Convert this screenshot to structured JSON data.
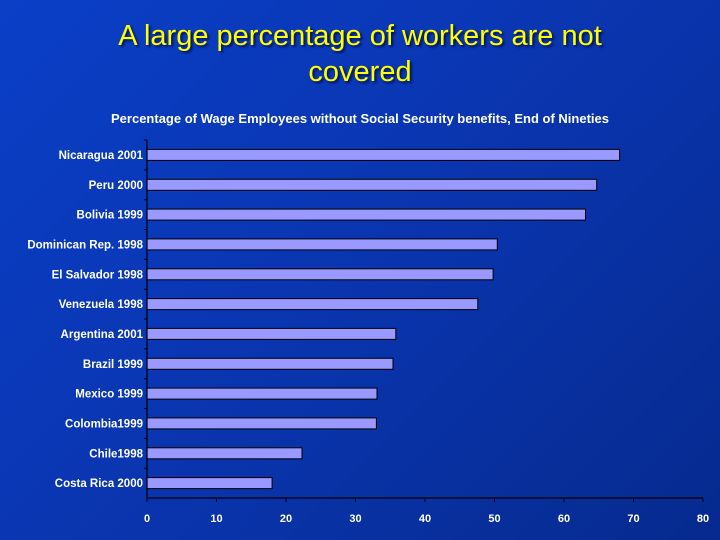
{
  "slide": {
    "title_line1": "A large percentage of workers are not",
    "title_line2": "covered"
  },
  "chart_data": {
    "type": "bar",
    "orientation": "horizontal",
    "title": "Percentage of Wage Employees without Social Security benefits, End of Nineties",
    "categories": [
      "Nicaragua 2001",
      "Peru 2000",
      "Bolivia 1999",
      "Dominican Rep. 1998",
      "El Salvador 1998",
      "Venezuela 1998",
      "Argentina 2001",
      "Brazil 1999",
      "Mexico 1999",
      "Colombia1999",
      "Chile1998",
      "Costa Rica 2000"
    ],
    "values": [
      68,
      64.7,
      63.1,
      50.4,
      49.8,
      47.6,
      35.8,
      35.4,
      33.1,
      33,
      22.3,
      18
    ],
    "xlim": [
      0,
      80
    ],
    "xticks": [
      "0",
      "10",
      "20",
      "30",
      "40",
      "50",
      "60",
      "70",
      "80"
    ],
    "xlabel": "",
    "ylabel": "",
    "grid": false,
    "bar_color": "#9999ff"
  }
}
